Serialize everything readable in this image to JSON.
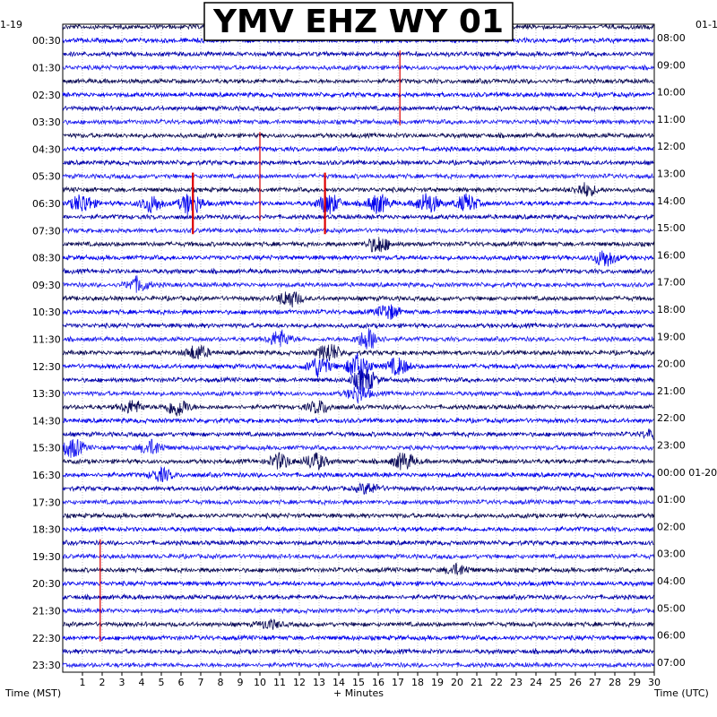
{
  "chart_data": {
    "type": "line",
    "title": "YMV EHZ WY 01",
    "left_date_label": "1-19",
    "right_date_label": "01-1",
    "xlabel": "+ Minutes",
    "left_axis_title": "Time (MST)",
    "right_axis_title": "Time (UTC)",
    "xlim": [
      0,
      30
    ],
    "x_ticks": [
      1,
      2,
      3,
      4,
      5,
      6,
      7,
      8,
      9,
      10,
      11,
      12,
      13,
      14,
      15,
      16,
      17,
      18,
      19,
      20,
      21,
      22,
      23,
      24,
      25,
      26,
      27,
      28,
      29,
      30
    ],
    "row_count": 48,
    "left_labels": [
      "00:30",
      "01:30",
      "02:30",
      "03:30",
      "04:30",
      "05:30",
      "06:30",
      "07:30",
      "08:30",
      "09:30",
      "10:30",
      "11:30",
      "12:30",
      "13:30",
      "14:30",
      "15:30",
      "16:30",
      "17:30",
      "18:30",
      "19:30",
      "20:30",
      "21:30",
      "22:30",
      "23:30"
    ],
    "right_labels": [
      "08:00",
      "09:00",
      "10:00",
      "11:00",
      "12:00",
      "13:00",
      "14:00",
      "15:00",
      "16:00",
      "17:00",
      "18:00",
      "19:00",
      "20:00",
      "21:00",
      "22:00",
      "23:00",
      "00:00 01-20",
      "01:00",
      "02:00",
      "03:00",
      "04:00",
      "05:00",
      "06:00",
      "07:00"
    ],
    "trace_colors": [
      "#0a0a55",
      "#0000ee",
      "#0000aa",
      "#1e1ef0"
    ],
    "event_color": "#dd0000",
    "grid": true,
    "events": [
      {
        "row": 2,
        "minute": 17.1,
        "amp": 0.6,
        "span": 5
      },
      {
        "row": 8,
        "minute": 10.0,
        "amp": 0.5,
        "span": 6
      },
      {
        "row": 11,
        "minute": 6.6,
        "amp": 1.0,
        "span": 4
      },
      {
        "row": 11,
        "minute": 13.3,
        "amp": 1.0,
        "span": 4
      },
      {
        "row": 38,
        "minute": 1.9,
        "amp": 0.5,
        "span": 7
      }
    ],
    "bursts": [
      {
        "row": 13,
        "minute": 1.0,
        "amp": 0.9
      },
      {
        "row": 13,
        "minute": 4.5,
        "amp": 0.8
      },
      {
        "row": 13,
        "minute": 6.5,
        "amp": 1.1
      },
      {
        "row": 13,
        "minute": 13.5,
        "amp": 1.0
      },
      {
        "row": 13,
        "minute": 16.0,
        "amp": 0.9
      },
      {
        "row": 13,
        "minute": 18.5,
        "amp": 1.0
      },
      {
        "row": 13,
        "minute": 20.5,
        "amp": 0.8
      },
      {
        "row": 12,
        "minute": 26.5,
        "amp": 0.6
      },
      {
        "row": 16,
        "minute": 16.0,
        "amp": 0.8
      },
      {
        "row": 17,
        "minute": 27.5,
        "amp": 0.8
      },
      {
        "row": 19,
        "minute": 3.8,
        "amp": 0.7
      },
      {
        "row": 20,
        "minute": 11.5,
        "amp": 0.8
      },
      {
        "row": 21,
        "minute": 16.5,
        "amp": 0.7
      },
      {
        "row": 23,
        "minute": 11.0,
        "amp": 0.8
      },
      {
        "row": 23,
        "minute": 15.5,
        "amp": 1.0
      },
      {
        "row": 24,
        "minute": 6.8,
        "amp": 0.7
      },
      {
        "row": 24,
        "minute": 13.5,
        "amp": 0.9
      },
      {
        "row": 25,
        "minute": 15.0,
        "amp": 1.3
      },
      {
        "row": 25,
        "minute": 13.0,
        "amp": 1.0
      },
      {
        "row": 25,
        "minute": 17.0,
        "amp": 0.8
      },
      {
        "row": 26,
        "minute": 15.3,
        "amp": 1.2
      },
      {
        "row": 27,
        "minute": 15.0,
        "amp": 0.8
      },
      {
        "row": 28,
        "minute": 5.8,
        "amp": 0.9
      },
      {
        "row": 28,
        "minute": 3.5,
        "amp": 0.6
      },
      {
        "row": 28,
        "minute": 13.0,
        "amp": 0.6
      },
      {
        "row": 30,
        "minute": 30.0,
        "amp": 0.5
      },
      {
        "row": 31,
        "minute": 0.5,
        "amp": 0.9
      },
      {
        "row": 31,
        "minute": 4.5,
        "amp": 0.7
      },
      {
        "row": 32,
        "minute": 11.0,
        "amp": 0.7
      },
      {
        "row": 32,
        "minute": 12.8,
        "amp": 0.8
      },
      {
        "row": 32,
        "minute": 17.3,
        "amp": 0.8
      },
      {
        "row": 33,
        "minute": 5.0,
        "amp": 0.6
      },
      {
        "row": 34,
        "minute": 15.5,
        "amp": 0.5
      },
      {
        "row": 40,
        "minute": 20.0,
        "amp": 0.5
      },
      {
        "row": 44,
        "minute": 10.5,
        "amp": 0.4
      }
    ]
  }
}
